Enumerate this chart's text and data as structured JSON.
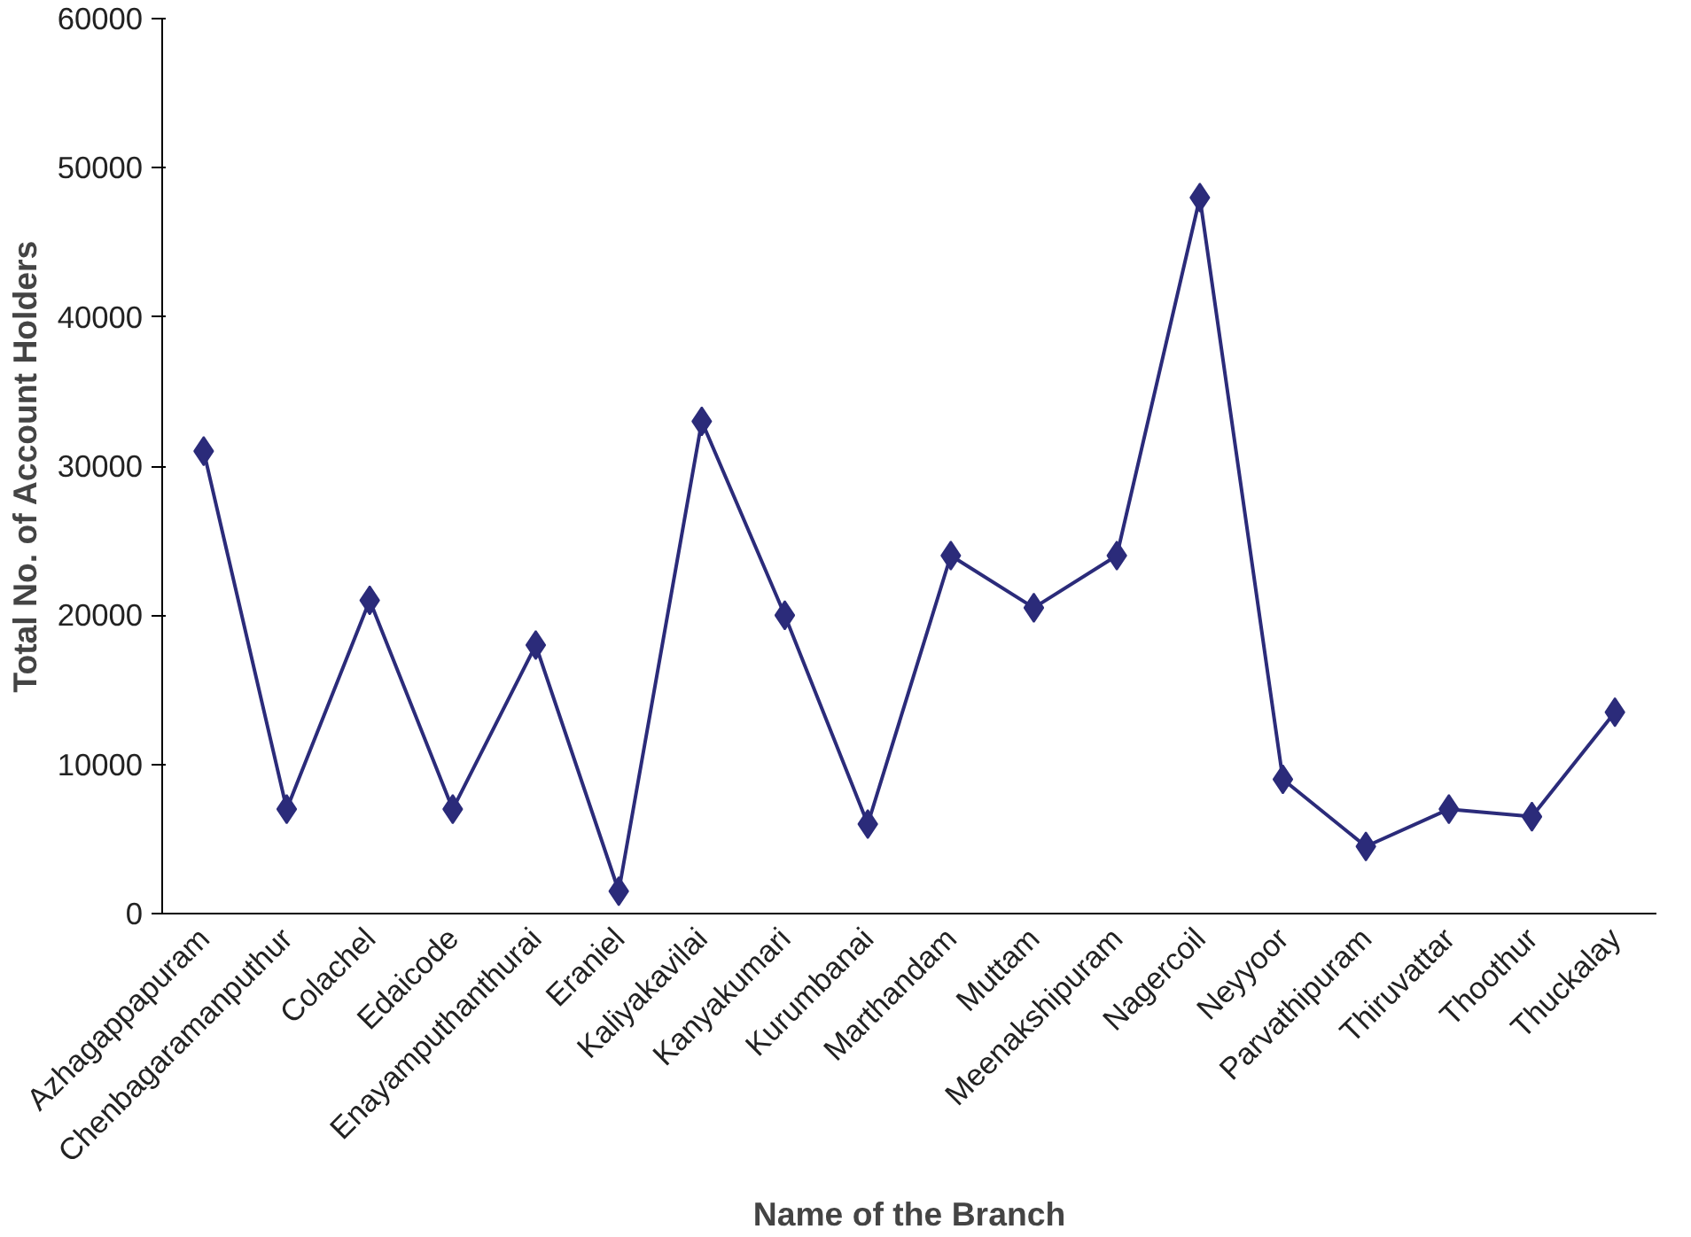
{
  "chart_data": {
    "type": "line",
    "xlabel": "Name of the Branch",
    "ylabel": "Total No. of Account Holders",
    "categories": [
      "Azhagappapuram",
      "Chenbagaramanputhur",
      "Colachel",
      "Edaicode",
      "Enayamputhanthurai",
      "Eraniel",
      "Kaliyakavilai",
      "Kanyakumari",
      "Kurumbanai",
      "Marthandam",
      "Muttam",
      "Meenakshipuram",
      "Nagercoil",
      "Neyyoor",
      "Parvathipuram",
      "Thiruvattar",
      "Thoothur",
      "Thuckalay"
    ],
    "series": [
      {
        "color": "#2b2b7a",
        "values": [
          31000,
          7000,
          21000,
          7000,
          18000,
          1500,
          33000,
          20000,
          6000,
          24000,
          20500,
          24000,
          48000,
          9000,
          4500,
          7000,
          6500,
          13500
        ]
      }
    ],
    "ylim": [
      0,
      60000
    ],
    "yticks": [
      0,
      10000,
      20000,
      30000,
      40000,
      50000,
      60000
    ],
    "grid": false,
    "marker": "diamond",
    "line_style": "solid"
  }
}
